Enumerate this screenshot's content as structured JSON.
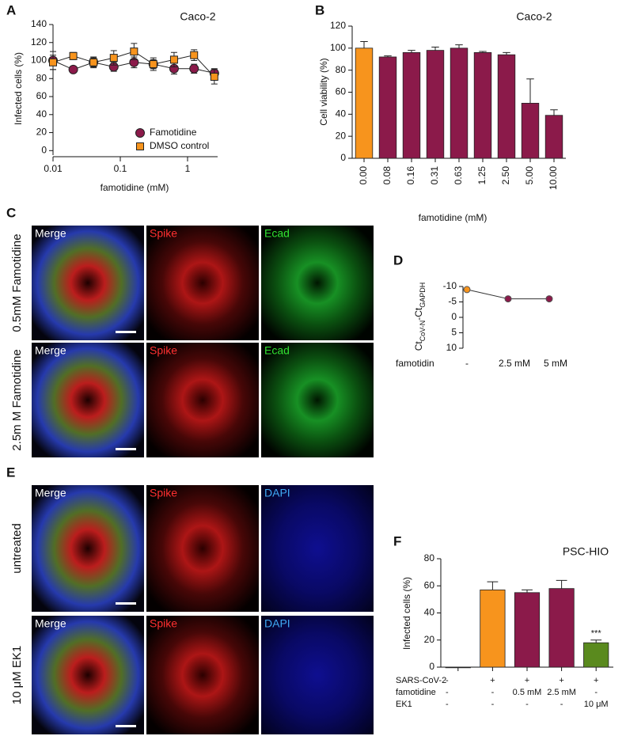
{
  "chart_data": [
    {
      "panel": "A",
      "type": "line",
      "title": "Caco-2",
      "xlabel": "famotidine (mM)",
      "ylabel": "Infected cells (%)",
      "xscale": "log",
      "x": [
        0.01,
        0.02,
        0.04,
        0.08,
        0.16,
        0.31,
        0.63,
        1.25,
        2.5
      ],
      "xlim": [
        0.01,
        2.8
      ],
      "xticks": [
        0.01,
        0.1,
        1
      ],
      "ylim": [
        -5,
        140
      ],
      "yticks": [
        0,
        20,
        40,
        60,
        80,
        100,
        120,
        140
      ],
      "legend": "lower right",
      "series": [
        {
          "name": "Famotidine",
          "color": "#8b1a4a",
          "marker": "circle",
          "values": [
            100,
            90,
            98,
            93,
            98,
            96,
            91,
            91,
            86
          ],
          "errors": [
            10,
            3,
            5,
            5,
            6,
            5,
            6,
            5,
            5
          ]
        },
        {
          "name": "DMSO control",
          "color": "#f7941d",
          "marker": "square",
          "values": [
            98,
            105,
            98,
            103,
            110,
            96,
            101,
            106,
            82
          ],
          "errors": [
            8,
            4,
            6,
            8,
            9,
            7,
            8,
            6,
            8
          ]
        }
      ]
    },
    {
      "panel": "B",
      "type": "bar",
      "title": "Caco-2",
      "xlabel": "famotidine (mM)",
      "ylabel": "Cell viability (%)",
      "categories": [
        "0.00",
        "0.08",
        "0.16",
        "0.31",
        "0.63",
        "1.25",
        "2.50",
        "5.00",
        "10.00"
      ],
      "values": [
        100,
        92,
        96,
        98,
        100,
        96,
        94,
        50,
        39
      ],
      "errors": [
        6,
        1,
        2,
        3,
        3,
        1,
        2,
        22,
        5
      ],
      "colors": [
        "#f7941d",
        "#8b1a4a",
        "#8b1a4a",
        "#8b1a4a",
        "#8b1a4a",
        "#8b1a4a",
        "#8b1a4a",
        "#8b1a4a",
        "#8b1a4a"
      ],
      "ylim": [
        0,
        120
      ],
      "yticks": [
        0,
        20,
        40,
        60,
        80,
        100,
        120
      ]
    },
    {
      "panel": "D",
      "type": "line",
      "ylabel_parts": [
        "Ct",
        "CoV-N",
        "-Ct",
        "GAPDH"
      ],
      "row_label": "famotidin",
      "categories": [
        "-",
        "2.5 mM",
        "5 mM"
      ],
      "values": [
        -9,
        -6,
        -6
      ],
      "colors": [
        "#f7941d",
        "#8b1a4a",
        "#8b1a4a"
      ],
      "line_color": "#333333",
      "ylim": [
        10,
        -10
      ],
      "yticks": [
        -10,
        -5,
        0,
        5,
        10
      ]
    },
    {
      "panel": "F",
      "type": "bar",
      "title": "PSC-HIO",
      "ylabel": "Infected cells (%)",
      "values": [
        0,
        57,
        55,
        58,
        18
      ],
      "errors": [
        0,
        6,
        2,
        6,
        2
      ],
      "colors": [
        "#8b1a4a",
        "#f7941d",
        "#8b1a4a",
        "#8b1a4a",
        "#5a8a1e"
      ],
      "value_annotations": [
        null,
        null,
        null,
        null,
        "***"
      ],
      "condition_rows": [
        {
          "label": "SARS-CoV-2",
          "values": [
            "-",
            "+",
            "+",
            "+",
            "+"
          ]
        },
        {
          "label": "famotidine",
          "values": [
            "-",
            "-",
            "0.5 mM",
            "2.5 mM",
            "-"
          ]
        },
        {
          "label": "EK1",
          "values": [
            "-",
            "-",
            "-",
            "-",
            "10 μM"
          ]
        }
      ],
      "ylim": [
        0,
        80
      ],
      "yticks": [
        0,
        20,
        40,
        60,
        80
      ]
    }
  ],
  "image_panels": [
    {
      "panel": "C",
      "rows": [
        {
          "label": "0.5mM Famotidine",
          "columns": [
            "Merge",
            "Spike",
            "Ecad"
          ]
        },
        {
          "label": "2.5m M Famotidine",
          "columns": [
            "Merge",
            "Spike",
            "Ecad"
          ]
        }
      ]
    },
    {
      "panel": "E",
      "rows": [
        {
          "label": "untreated",
          "columns": [
            "Merge",
            "Spike",
            "DAPI"
          ]
        },
        {
          "label": "10 μM EK1",
          "columns": [
            "Merge",
            "Spike",
            "DAPI"
          ]
        }
      ]
    }
  ]
}
